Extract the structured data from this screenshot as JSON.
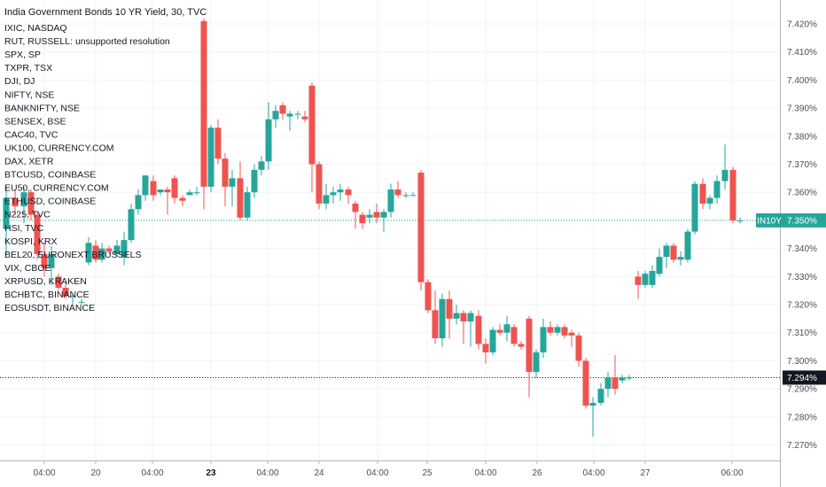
{
  "chart_data": {
    "type": "candlestick",
    "title": "India Government Bonds 10 YR Yield, 30, TVC",
    "y_ticks": [
      "7.270%",
      "7.280%",
      "7.290%",
      "7.300%",
      "7.310%",
      "7.320%",
      "7.330%",
      "7.340%",
      "7.350%",
      "7.360%",
      "7.370%",
      "7.380%",
      "7.390%",
      "7.400%",
      "7.410%",
      "7.420%"
    ],
    "ylim": [
      7.2645,
      7.4285
    ],
    "x_ticks": [
      {
        "label": "04:00",
        "x": 50,
        "bold": false
      },
      {
        "label": "20",
        "x": 108,
        "bold": false
      },
      {
        "label": "04:00",
        "x": 172,
        "bold": false
      },
      {
        "label": "23",
        "x": 238,
        "bold": true
      },
      {
        "label": "04:00",
        "x": 302,
        "bold": false
      },
      {
        "label": "24",
        "x": 360,
        "bold": false
      },
      {
        "label": "04:00",
        "x": 426,
        "bold": false
      },
      {
        "label": "25",
        "x": 482,
        "bold": false
      },
      {
        "label": "04:00",
        "x": 548,
        "bold": false
      },
      {
        "label": "26",
        "x": 606,
        "bold": false
      },
      {
        "label": "04:00",
        "x": 670,
        "bold": false
      },
      {
        "label": "27",
        "x": 728,
        "bold": false
      },
      {
        "label": "06:00",
        "x": 826,
        "bold": false
      }
    ],
    "legend": [
      "IXIC, NASDAQ",
      "RUT, RUSSELL: unsupported resolution",
      "SPX, SP",
      "TXPR, TSX",
      "DJI, DJ",
      "NIFTY, NSE",
      "BANKNIFTY, NSE",
      "SENSEX, BSE",
      "CAC40, TVC",
      "UK100, CURRENCY.COM",
      "DAX, XETR",
      "BTCUSD, COINBASE",
      "EU50, CURRENCY.COM",
      "ETHUSD, COINBASE",
      "N225, TVC",
      "HSI, TVC",
      "KOSPI, KRX",
      "BEL20, EURONEXT BRUSSELS",
      "VIX, CBOE",
      "XRPUSD, KRAKEN",
      "BCHBTC, BINANCE",
      "EOSUSDT, BINANCE"
    ],
    "price_tag_current": {
      "symbol": "IN10Y",
      "value": "7.350%",
      "price": 7.35
    },
    "price_tag_low": {
      "value": "7.294%",
      "price": 7.294
    },
    "colors": {
      "up": "#26a69a",
      "down": "#ef5350",
      "grid": "#f0f3fa",
      "tag_green": "#26a69a",
      "tag_dark": "#131722"
    },
    "candles": [
      {
        "x": 7,
        "o": 7.347,
        "h": 7.362,
        "l": 7.338,
        "c": 7.358
      },
      {
        "x": 17,
        "o": 7.358,
        "h": 7.361,
        "l": 7.352,
        "c": 7.355
      },
      {
        "x": 27,
        "o": 7.355,
        "h": 7.362,
        "l": 7.349,
        "c": 7.36
      },
      {
        "x": 35,
        "o": 7.36,
        "h": 7.361,
        "l": 7.35,
        "c": 7.352
      },
      {
        "x": 42,
        "o": 7.352,
        "h": 7.353,
        "l": 7.336,
        "c": 7.338
      },
      {
        "x": 50,
        "o": 7.338,
        "h": 7.342,
        "l": 7.33,
        "c": 7.333
      },
      {
        "x": 58,
        "o": 7.333,
        "h": 7.341,
        "l": 7.327,
        "c": 7.338
      },
      {
        "x": 66,
        "o": 7.33,
        "h": 7.331,
        "l": 7.325,
        "c": 7.326
      },
      {
        "x": 74,
        "o": 7.326,
        "h": 7.328,
        "l": 7.322,
        "c": 7.323
      },
      {
        "x": 82,
        "o": 7.323,
        "h": 7.324,
        "l": 7.32,
        "c": 7.323
      },
      {
        "x": 92,
        "o": 7.321,
        "h": 7.322,
        "l": 7.32,
        "c": 7.321
      },
      {
        "x": 100,
        "o": 7.335,
        "h": 7.344,
        "l": 7.334,
        "c": 7.342
      },
      {
        "x": 108,
        "o": 7.341,
        "h": 7.343,
        "l": 7.335,
        "c": 7.336
      },
      {
        "x": 115,
        "o": 7.336,
        "h": 7.342,
        "l": 7.335,
        "c": 7.34
      },
      {
        "x": 123,
        "o": 7.34,
        "h": 7.341,
        "l": 7.338,
        "c": 7.339
      },
      {
        "x": 132,
        "o": 7.338,
        "h": 7.343,
        "l": 7.337,
        "c": 7.341
      },
      {
        "x": 140,
        "o": 7.337,
        "h": 7.346,
        "l": 7.334,
        "c": 7.343
      },
      {
        "x": 148,
        "o": 7.343,
        "h": 7.356,
        "l": 7.342,
        "c": 7.354
      },
      {
        "x": 156,
        "o": 7.354,
        "h": 7.361,
        "l": 7.352,
        "c": 7.359
      },
      {
        "x": 164,
        "o": 7.359,
        "h": 7.366,
        "l": 7.357,
        "c": 7.366
      },
      {
        "x": 173,
        "o": 7.364,
        "h": 7.366,
        "l": 7.357,
        "c": 7.359
      },
      {
        "x": 181,
        "o": 7.36,
        "h": 7.361,
        "l": 7.359,
        "c": 7.361
      },
      {
        "x": 189,
        "o": 7.361,
        "h": 7.362,
        "l": 7.352,
        "c": 7.36
      },
      {
        "x": 197,
        "o": 7.365,
        "h": 7.366,
        "l": 7.356,
        "c": 7.358
      },
      {
        "x": 206,
        "o": 7.358,
        "h": 7.359,
        "l": 7.355,
        "c": 7.357
      },
      {
        "x": 214,
        "o": 7.359,
        "h": 7.361,
        "l": 7.359,
        "c": 7.36
      },
      {
        "x": 222,
        "o": 7.36,
        "h": 7.362,
        "l": 7.359,
        "c": 7.36
      },
      {
        "x": 230,
        "o": 7.421,
        "h": 7.422,
        "l": 7.354,
        "c": 7.362
      },
      {
        "x": 238,
        "o": 7.362,
        "h": 7.384,
        "l": 7.36,
        "c": 7.383
      },
      {
        "x": 246,
        "o": 7.383,
        "h": 7.386,
        "l": 7.37,
        "c": 7.372
      },
      {
        "x": 254,
        "o": 7.372,
        "h": 7.374,
        "l": 7.355,
        "c": 7.362
      },
      {
        "x": 262,
        "o": 7.362,
        "h": 7.368,
        "l": 7.355,
        "c": 7.365
      },
      {
        "x": 271,
        "o": 7.365,
        "h": 7.371,
        "l": 7.35,
        "c": 7.351
      },
      {
        "x": 279,
        "o": 7.351,
        "h": 7.362,
        "l": 7.35,
        "c": 7.36
      },
      {
        "x": 287,
        "o": 7.36,
        "h": 7.37,
        "l": 7.358,
        "c": 7.368
      },
      {
        "x": 295,
        "o": 7.368,
        "h": 7.373,
        "l": 7.366,
        "c": 7.371
      },
      {
        "x": 303,
        "o": 7.371,
        "h": 7.392,
        "l": 7.368,
        "c": 7.386
      },
      {
        "x": 311,
        "o": 7.386,
        "h": 7.391,
        "l": 7.383,
        "c": 7.389
      },
      {
        "x": 319,
        "o": 7.391,
        "h": 7.392,
        "l": 7.386,
        "c": 7.388
      },
      {
        "x": 327,
        "o": 7.387,
        "h": 7.389,
        "l": 7.382,
        "c": 7.388
      },
      {
        "x": 336,
        "o": 7.388,
        "h": 7.389,
        "l": 7.386,
        "c": 7.388
      },
      {
        "x": 344,
        "o": 7.387,
        "h": 7.389,
        "l": 7.385,
        "c": 7.386
      },
      {
        "x": 352,
        "o": 7.398,
        "h": 7.399,
        "l": 7.36,
        "c": 7.37
      },
      {
        "x": 360,
        "o": 7.37,
        "h": 7.371,
        "l": 7.354,
        "c": 7.356
      },
      {
        "x": 368,
        "o": 7.356,
        "h": 7.363,
        "l": 7.354,
        "c": 7.359
      },
      {
        "x": 376,
        "o": 7.359,
        "h": 7.362,
        "l": 7.356,
        "c": 7.36
      },
      {
        "x": 384,
        "o": 7.36,
        "h": 7.363,
        "l": 7.357,
        "c": 7.361
      },
      {
        "x": 393,
        "o": 7.361,
        "h": 7.362,
        "l": 7.356,
        "c": 7.359
      },
      {
        "x": 401,
        "o": 7.356,
        "h": 7.357,
        "l": 7.347,
        "c": 7.353
      },
      {
        "x": 409,
        "o": 7.352,
        "h": 7.353,
        "l": 7.347,
        "c": 7.349
      },
      {
        "x": 417,
        "o": 7.351,
        "h": 7.354,
        "l": 7.349,
        "c": 7.352
      },
      {
        "x": 425,
        "o": 7.353,
        "h": 7.356,
        "l": 7.349,
        "c": 7.351
      },
      {
        "x": 433,
        "o": 7.351,
        "h": 7.354,
        "l": 7.346,
        "c": 7.353
      },
      {
        "x": 441,
        "o": 7.353,
        "h": 7.363,
        "l": 7.351,
        "c": 7.361
      },
      {
        "x": 449,
        "o": 7.361,
        "h": 7.364,
        "l": 7.358,
        "c": 7.359
      },
      {
        "x": 458,
        "o": 7.359,
        "h": 7.36,
        "l": 7.358,
        "c": 7.359
      },
      {
        "x": 466,
        "o": 7.359,
        "h": 7.36,
        "l": 7.359,
        "c": 7.359
      },
      {
        "x": 475,
        "o": 7.367,
        "h": 7.368,
        "l": 7.325,
        "c": 7.328
      },
      {
        "x": 483,
        "o": 7.328,
        "h": 7.329,
        "l": 7.317,
        "c": 7.318
      },
      {
        "x": 491,
        "o": 7.318,
        "h": 7.325,
        "l": 7.306,
        "c": 7.308
      },
      {
        "x": 499,
        "o": 7.308,
        "h": 7.324,
        "l": 7.305,
        "c": 7.322
      },
      {
        "x": 507,
        "o": 7.322,
        "h": 7.325,
        "l": 7.308,
        "c": 7.315
      },
      {
        "x": 515,
        "o": 7.315,
        "h": 7.32,
        "l": 7.313,
        "c": 7.317
      },
      {
        "x": 523,
        "o": 7.317,
        "h": 7.318,
        "l": 7.306,
        "c": 7.314
      },
      {
        "x": 531,
        "o": 7.314,
        "h": 7.318,
        "l": 7.305,
        "c": 7.317
      },
      {
        "x": 540,
        "o": 7.316,
        "h": 7.318,
        "l": 7.304,
        "c": 7.306
      },
      {
        "x": 548,
        "o": 7.306,
        "h": 7.308,
        "l": 7.299,
        "c": 7.303
      },
      {
        "x": 556,
        "o": 7.303,
        "h": 7.312,
        "l": 7.302,
        "c": 7.311
      },
      {
        "x": 564,
        "o": 7.311,
        "h": 7.313,
        "l": 7.309,
        "c": 7.31
      },
      {
        "x": 572,
        "o": 7.31,
        "h": 7.316,
        "l": 7.307,
        "c": 7.313
      },
      {
        "x": 580,
        "o": 7.312,
        "h": 7.313,
        "l": 7.305,
        "c": 7.306
      },
      {
        "x": 588,
        "o": 7.306,
        "h": 7.307,
        "l": 7.304,
        "c": 7.305
      },
      {
        "x": 597,
        "o": 7.315,
        "h": 7.316,
        "l": 7.287,
        "c": 7.296
      },
      {
        "x": 605,
        "o": 7.296,
        "h": 7.304,
        "l": 7.294,
        "c": 7.303
      },
      {
        "x": 613,
        "o": 7.303,
        "h": 7.315,
        "l": 7.301,
        "c": 7.312
      },
      {
        "x": 621,
        "o": 7.312,
        "h": 7.314,
        "l": 7.309,
        "c": 7.31
      },
      {
        "x": 629,
        "o": 7.31,
        "h": 7.313,
        "l": 7.309,
        "c": 7.312
      },
      {
        "x": 637,
        "o": 7.312,
        "h": 7.313,
        "l": 7.308,
        "c": 7.309
      },
      {
        "x": 645,
        "o": 7.31,
        "h": 7.311,
        "l": 7.305,
        "c": 7.309
      },
      {
        "x": 653,
        "o": 7.309,
        "h": 7.31,
        "l": 7.298,
        "c": 7.3
      },
      {
        "x": 661,
        "o": 7.3,
        "h": 7.301,
        "l": 7.283,
        "c": 7.284
      },
      {
        "x": 669,
        "o": 7.284,
        "h": 7.287,
        "l": 7.273,
        "c": 7.285
      },
      {
        "x": 678,
        "o": 7.285,
        "h": 7.292,
        "l": 7.284,
        "c": 7.29
      },
      {
        "x": 686,
        "o": 7.29,
        "h": 7.296,
        "l": 7.287,
        "c": 7.294
      },
      {
        "x": 694,
        "o": 7.294,
        "h": 7.302,
        "l": 7.288,
        "c": 7.29
      },
      {
        "x": 702,
        "o": 7.293,
        "h": 7.295,
        "l": 7.292,
        "c": 7.294
      },
      {
        "x": 710,
        "o": 7.294,
        "h": 7.295,
        "l": 7.293,
        "c": 7.294
      },
      {
        "x": 720,
        "o": 7.33,
        "h": 7.332,
        "l": 7.322,
        "c": 7.327
      },
      {
        "x": 728,
        "o": 7.327,
        "h": 7.332,
        "l": 7.326,
        "c": 7.331
      },
      {
        "x": 736,
        "o": 7.327,
        "h": 7.334,
        "l": 7.326,
        "c": 7.332
      },
      {
        "x": 744,
        "o": 7.331,
        "h": 7.34,
        "l": 7.33,
        "c": 7.337
      },
      {
        "x": 752,
        "o": 7.337,
        "h": 7.342,
        "l": 7.333,
        "c": 7.341
      },
      {
        "x": 760,
        "o": 7.341,
        "h": 7.342,
        "l": 7.335,
        "c": 7.336
      },
      {
        "x": 768,
        "o": 7.336,
        "h": 7.339,
        "l": 7.334,
        "c": 7.337
      },
      {
        "x": 776,
        "o": 7.336,
        "h": 7.347,
        "l": 7.335,
        "c": 7.346
      },
      {
        "x": 784,
        "o": 7.346,
        "h": 7.364,
        "l": 7.345,
        "c": 7.363
      },
      {
        "x": 793,
        "o": 7.363,
        "h": 7.365,
        "l": 7.354,
        "c": 7.356
      },
      {
        "x": 801,
        "o": 7.356,
        "h": 7.359,
        "l": 7.354,
        "c": 7.358
      },
      {
        "x": 809,
        "o": 7.358,
        "h": 7.366,
        "l": 7.356,
        "c": 7.364
      },
      {
        "x": 818,
        "o": 7.364,
        "h": 7.377,
        "l": 7.361,
        "c": 7.368
      },
      {
        "x": 827,
        "o": 7.368,
        "h": 7.369,
        "l": 7.349,
        "c": 7.35
      },
      {
        "x": 835,
        "o": 7.35,
        "h": 7.351,
        "l": 7.349,
        "c": 7.35
      }
    ]
  }
}
